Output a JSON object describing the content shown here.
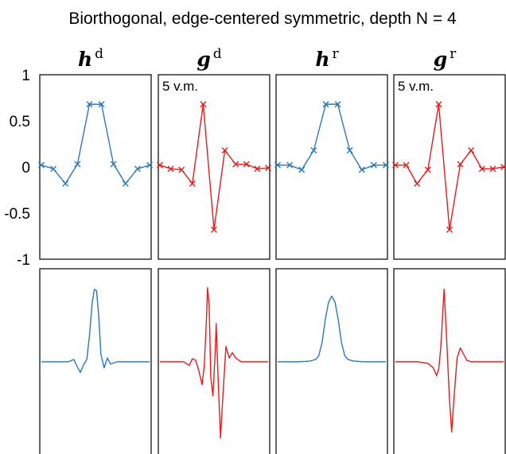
{
  "title": "Biorthogonal, edge-centered symmetric, depth N = 4",
  "colors": {
    "blue": "#2878c0",
    "red": "#e81a1a"
  },
  "chart_data": {
    "type": "line",
    "title": "Biorthogonal, edge-centered symmetric, depth N = 4",
    "panels": [
      {
        "label": "h",
        "superscript": "d",
        "color": "#2878c0",
        "note": "",
        "x": [
          0,
          1,
          2,
          3,
          4,
          5,
          6,
          7,
          8,
          9
        ],
        "values": [
          0.02,
          -0.02,
          -0.18,
          0.03,
          0.68,
          0.68,
          0.03,
          -0.18,
          -0.02,
          0.02
        ]
      },
      {
        "label": "g",
        "superscript": "d",
        "color": "#e81a1a",
        "note": "5 v.m.",
        "x": [
          0,
          1,
          2,
          3,
          4,
          5,
          6,
          7,
          8,
          9,
          10
        ],
        "values": [
          0.02,
          -0.02,
          -0.03,
          -0.18,
          0.68,
          -0.68,
          0.18,
          0.03,
          0.03,
          -0.02,
          -0.01
        ]
      },
      {
        "label": "h",
        "superscript": "r",
        "color": "#2878c0",
        "note": "",
        "x": [
          0,
          1,
          2,
          3,
          4,
          5,
          6,
          7,
          8,
          9
        ],
        "values": [
          0.02,
          0.02,
          -0.03,
          0.18,
          0.68,
          0.68,
          0.18,
          -0.03,
          0.02,
          0.02
        ]
      },
      {
        "label": "g",
        "superscript": "r",
        "color": "#e81a1a",
        "note": "5 v.m.",
        "x": [
          0,
          1,
          2,
          3,
          4,
          5,
          6,
          7,
          8,
          9,
          10
        ],
        "values": [
          0.02,
          0.02,
          -0.18,
          -0.03,
          0.68,
          -0.68,
          0.03,
          0.18,
          -0.02,
          -0.02,
          0.0
        ]
      }
    ],
    "ylim": [
      -1,
      1
    ],
    "yticks": [
      "1",
      "0.5",
      "0",
      "-0.5",
      "-1"
    ],
    "ytick_values": [
      1,
      0.5,
      0,
      -0.5,
      -1
    ],
    "grid": false,
    "bottom_row": {
      "description_type": "continuous limit functions",
      "curves": [
        {
          "color": "#2878c0",
          "points": [
            [
              0,
              0
            ],
            [
              0.25,
              0
            ],
            [
              0.3,
              0.03
            ],
            [
              0.33,
              -0.06
            ],
            [
              0.36,
              -0.14
            ],
            [
              0.39,
              -0.04
            ],
            [
              0.42,
              0.03
            ],
            [
              0.445,
              0.35
            ],
            [
              0.47,
              0.78
            ],
            [
              0.49,
              0.95
            ],
            [
              0.51,
              0.93
            ],
            [
              0.53,
              0.6
            ],
            [
              0.55,
              0.1
            ],
            [
              0.58,
              -0.08
            ],
            [
              0.61,
              0.05
            ],
            [
              0.64,
              -0.03
            ],
            [
              0.7,
              0
            ],
            [
              1,
              0
            ]
          ]
        },
        {
          "color": "#e81a1a",
          "points": [
            [
              0,
              0
            ],
            [
              0.22,
              0
            ],
            [
              0.27,
              -0.05
            ],
            [
              0.3,
              0.04
            ],
            [
              0.33,
              0.02
            ],
            [
              0.36,
              -0.12
            ],
            [
              0.39,
              -0.3
            ],
            [
              0.41,
              -0.05
            ],
            [
              0.43,
              0.55
            ],
            [
              0.44,
              0.97
            ],
            [
              0.455,
              0.75
            ],
            [
              0.47,
              -0.2
            ],
            [
              0.49,
              -0.45
            ],
            [
              0.51,
              0.1
            ],
            [
              0.52,
              0.5
            ],
            [
              0.54,
              -0.3
            ],
            [
              0.56,
              -1.0
            ],
            [
              0.58,
              -0.5
            ],
            [
              0.61,
              0.2
            ],
            [
              0.64,
              0.05
            ],
            [
              0.67,
              0.12
            ],
            [
              0.7,
              0.05
            ],
            [
              0.75,
              0
            ],
            [
              1,
              0
            ]
          ]
        },
        {
          "color": "#2878c0",
          "points": [
            [
              0,
              0
            ],
            [
              0.2,
              0
            ],
            [
              0.3,
              0.01
            ],
            [
              0.35,
              0.03
            ],
            [
              0.38,
              0.08
            ],
            [
              0.41,
              0.25
            ],
            [
              0.44,
              0.55
            ],
            [
              0.47,
              0.78
            ],
            [
              0.5,
              0.86
            ],
            [
              0.53,
              0.78
            ],
            [
              0.56,
              0.55
            ],
            [
              0.59,
              0.25
            ],
            [
              0.62,
              0.08
            ],
            [
              0.65,
              0.03
            ],
            [
              0.7,
              0.01
            ],
            [
              0.8,
              0
            ],
            [
              1,
              0
            ]
          ]
        },
        {
          "color": "#e81a1a",
          "points": [
            [
              0,
              0
            ],
            [
              0.2,
              0
            ],
            [
              0.3,
              -0.02
            ],
            [
              0.35,
              -0.08
            ],
            [
              0.38,
              -0.18
            ],
            [
              0.4,
              -0.1
            ],
            [
              0.42,
              0.2
            ],
            [
              0.45,
              0.95
            ],
            [
              0.47,
              0.4
            ],
            [
              0.5,
              -0.5
            ],
            [
              0.52,
              -0.92
            ],
            [
              0.54,
              -0.5
            ],
            [
              0.57,
              0.05
            ],
            [
              0.6,
              0.18
            ],
            [
              0.63,
              0.1
            ],
            [
              0.66,
              0.02
            ],
            [
              0.7,
              0
            ],
            [
              1,
              0
            ]
          ]
        }
      ]
    }
  }
}
